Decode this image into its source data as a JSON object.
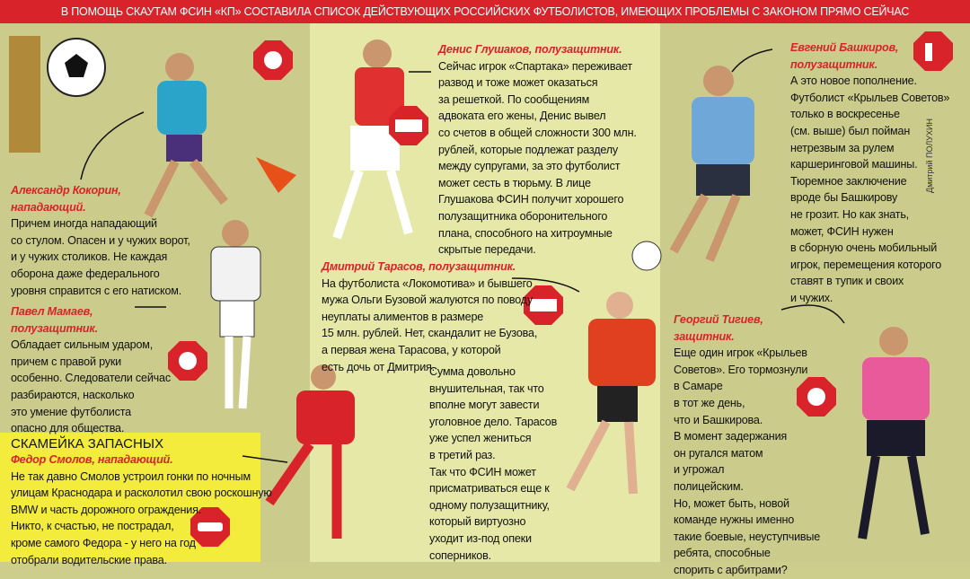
{
  "header": {
    "title": "В ПОМОЩЬ СКАУТАМ ФСИН «КП» СОСТАВИЛА СПИСОК ДЕЙСТВУЮЩИХ РОССИЙСКИХ ФУТБОЛИСТОВ, ИМЕЮЩИХ ПРОБЛЕМЫ С ЗАКОНОМ ПРЯМО СЕЙЧАС"
  },
  "credit": "Дмитрий ПОЛУХИН",
  "bench": {
    "heading": "СКАМЕЙКА ЗАПАСНЫХ"
  },
  "players": [
    {
      "name": [
        "Александр Кокорин,",
        "нападающий."
      ],
      "lines": [
        "Причем иногда нападающий",
        "со стулом. Опасен и у чужих ворот,",
        "и у чужих столиков. Не каждая",
        "оборона даже федерального",
        "уровня справится с его натиском."
      ]
    },
    {
      "name": [
        "Павел Мамаев,",
        "полузащитник."
      ],
      "lines": [
        "Обладает сильным ударом,",
        "причем с правой руки",
        "особенно. Следователи сейчас",
        "разбираются, насколько",
        "это умение футболиста",
        "опасно для общества."
      ]
    },
    {
      "name": [
        "Федор Смолов, нападающий."
      ],
      "lines": [
        "Не так давно Смолов устроил гонки по ночным",
        "улицам Краснодара и расколотил свою роскошную",
        "BMW и часть дорожного ограждения.",
        "Никто, к счастью, не пострадал,",
        "кроме самого Федора - у него на год",
        "отобрали водительские права."
      ]
    },
    {
      "name": [
        "Денис Глушаков, полузащитник."
      ],
      "lines": [
        "Сейчас игрок «Спартака» переживает",
        "развод и тоже может оказаться",
        "за решеткой. По сообщениям",
        "адвоката его жены, Денис вывел",
        "со счетов в общей сложности 300 млн.",
        "рублей, которые подлежат разделу",
        "между супругами, за это футболист",
        "может сесть в тюрьму. В лице",
        "Глушакова ФСИН получит хорошего",
        "полузащитника оборонительного",
        "плана, способного на хитроумные",
        "скрытые передачи."
      ]
    },
    {
      "name": [
        "Дмитрий Тарасов, полузащитник."
      ],
      "lines": [
        "На футболиста «Локомотива» и бывшего",
        "мужа Ольги Бузовой жалуются по поводу",
        "неуплаты алиментов в размере",
        "15 млн. рублей. Нет, скандалит не Бузова,",
        "а первая жена Тарасова, у которой",
        "есть дочь от Дмитрия."
      ],
      "lines2": [
        "Сумма довольно",
        "внушительная, так что",
        "вполне могут завести",
        "уголовное дело. Тарасов",
        "уже успел жениться",
        "в третий раз.",
        "Так что ФСИН может",
        "присматриваться еще к",
        "одному полузащитнику,",
        "который виртуозно",
        "уходит из-под опеки",
        "соперников."
      ]
    },
    {
      "name": [
        "Евгений Башкиров,",
        "полузащитник."
      ],
      "lines": [
        "А это новое пополнение.",
        "Футболист «Крыльев Советов»",
        "только в воскресенье",
        "(см. выше) был пойман",
        "нетрезвым за рулем",
        "каршеринговой машины.",
        "Тюремное заключение",
        "вроде бы Башкирову",
        "не грозит. Но как знать,",
        "может, ФСИН нужен",
        "в сборную очень мобильный",
        "игрок, перемещения которого",
        "ставят в тупик и своих",
        "и чужих."
      ]
    },
    {
      "name": [
        "Георгий Тигиев,",
        "защитник."
      ],
      "lines": [
        "Еще один игрок «Крыльев",
        "Советов». Его тормознули",
        "в Самаре",
        "в тот же день,",
        "что и Башкирова.",
        "В момент задержания",
        "он ругался матом",
        "и угрожал",
        "полицейским.",
        "Но, может быть, новой",
        "команде нужны именно",
        "такие боевые, неуступчивые",
        "ребята, способные",
        "спорить с арбитрами?"
      ]
    }
  ]
}
